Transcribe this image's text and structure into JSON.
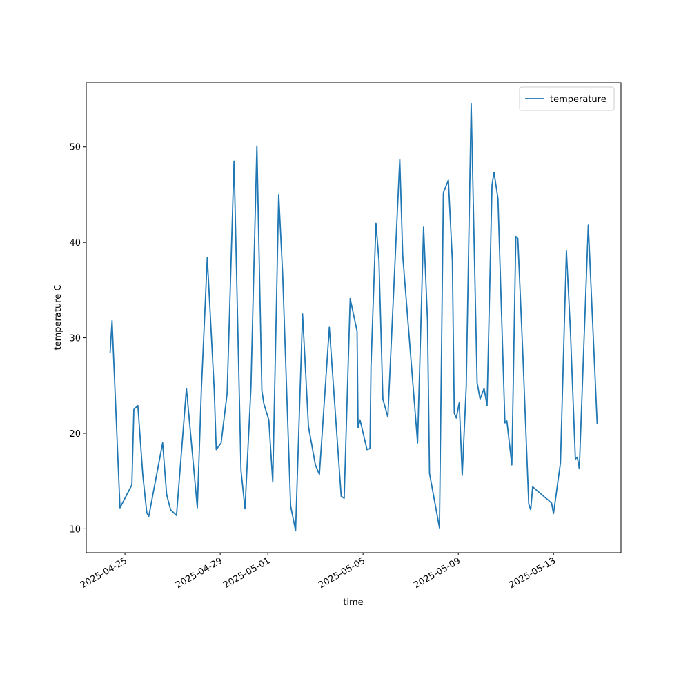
{
  "chart_data": {
    "type": "line",
    "xlabel": "time",
    "ylabel": "temperature C",
    "x": [
      "2025-04-24T09:00",
      "2025-04-24T11:00",
      "2025-04-24T19:00",
      "2025-04-25T07:00",
      "2025-04-25T09:00",
      "2025-04-25T13:00",
      "2025-04-25T18:00",
      "2025-04-25T22:00",
      "2025-04-26T00:00",
      "2025-04-26T14:00",
      "2025-04-26T18:00",
      "2025-04-26T22:00",
      "2025-04-27T04:00",
      "2025-04-27T14:00",
      "2025-04-28T01:00",
      "2025-04-28T05:00",
      "2025-04-28T11:00",
      "2025-04-28T18:00",
      "2025-04-28T20:00",
      "2025-04-29T01:00",
      "2025-04-29T07:00",
      "2025-04-29T14:00",
      "2025-04-29T21:00",
      "2025-04-30T01:00",
      "2025-04-30T07:00",
      "2025-04-30T13:00",
      "2025-04-30T18:00",
      "2025-04-30T20:00",
      "2025-05-01T01:00",
      "2025-05-01T05:00",
      "2025-05-01T11:00",
      "2025-05-01T15:00",
      "2025-05-01T23:00",
      "2025-05-02T04:00",
      "2025-05-02T11:00",
      "2025-05-02T17:00",
      "2025-05-03T00:00",
      "2025-05-03T04:00",
      "2025-05-03T14:00",
      "2025-05-04T02:00",
      "2025-05-04T05:00",
      "2025-05-04T11:00",
      "2025-05-04T18:00",
      "2025-05-04T19:00",
      "2025-05-04T21:00",
      "2025-05-05T04:00",
      "2025-05-05T07:00",
      "2025-05-05T08:00",
      "2025-05-05T13:00",
      "2025-05-05T16:00",
      "2025-05-05T20:00",
      "2025-05-06T01:00",
      "2025-05-06T13:00",
      "2025-05-06T16:00",
      "2025-05-07T07:00",
      "2025-05-07T13:00",
      "2025-05-07T17:00",
      "2025-05-07T19:00",
      "2025-05-08T05:00",
      "2025-05-08T09:00",
      "2025-05-08T14:00",
      "2025-05-08T18:00",
      "2025-05-08T20:00",
      "2025-05-08T22:00",
      "2025-05-09T01:00",
      "2025-05-09T04:00",
      "2025-05-09T08:00",
      "2025-05-09T13:00",
      "2025-05-09T19:00",
      "2025-05-09T22:00",
      "2025-05-10T02:00",
      "2025-05-10T05:00",
      "2025-05-10T10:00",
      "2025-05-10T12:00",
      "2025-05-10T16:00",
      "2025-05-10T23:00",
      "2025-05-11T01:00",
      "2025-05-11T06:00",
      "2025-05-11T10:00",
      "2025-05-11T12:00",
      "2025-05-11T17:00",
      "2025-05-11T23:00",
      "2025-05-12T01:00",
      "2025-05-12T03:00",
      "2025-05-12T22:00",
      "2025-05-13T00:00",
      "2025-05-13T07:00",
      "2025-05-13T13:00",
      "2025-05-13T17:00",
      "2025-05-13T22:00",
      "2025-05-14T00:00",
      "2025-05-14T02:00",
      "2025-05-14T11:00",
      "2025-05-14T20:00"
    ],
    "series": [
      {
        "name": "temperature",
        "color": "#1f77b4",
        "values": [
          28.4,
          31.8,
          12.2,
          14.6,
          22.5,
          22.9,
          15.6,
          11.7,
          11.3,
          19.0,
          13.6,
          12.0,
          11.4,
          24.7,
          12.2,
          24.5,
          38.4,
          24.5,
          18.3,
          19.0,
          24.2,
          48.5,
          16.1,
          12.1,
          24.8,
          50.1,
          24.5,
          23.1,
          21.4,
          14.9,
          45.0,
          36.6,
          12.4,
          9.8,
          32.5,
          20.7,
          16.7,
          15.7,
          31.1,
          13.4,
          13.2,
          34.1,
          30.7,
          20.6,
          21.4,
          18.3,
          18.4,
          27.0,
          42.0,
          38.1,
          23.6,
          21.7,
          48.7,
          38.6,
          19.0,
          41.6,
          31.8,
          15.8,
          10.1,
          45.2,
          46.5,
          38.1,
          22.1,
          21.6,
          23.2,
          15.6,
          24.9,
          54.5,
          25.3,
          23.6,
          24.7,
          22.9,
          46.0,
          47.3,
          44.6,
          21.1,
          21.3,
          16.7,
          40.6,
          40.4,
          28.4,
          12.6,
          12.0,
          14.4,
          12.7,
          11.6,
          16.9,
          39.1,
          30.8,
          17.3,
          17.5,
          16.3,
          41.8,
          21.0
        ]
      }
    ],
    "xlim": [
      "2025-04-23T09:00",
      "2025-05-15T20:00"
    ],
    "xticks": [
      "2025-04-25",
      "2025-04-29",
      "2025-05-01",
      "2025-05-05",
      "2025-05-09",
      "2025-05-13"
    ],
    "ylim": [
      7.5,
      56.7
    ],
    "yticks": [
      10,
      20,
      30,
      40,
      50
    ],
    "grid": false,
    "legend": "upper right"
  }
}
